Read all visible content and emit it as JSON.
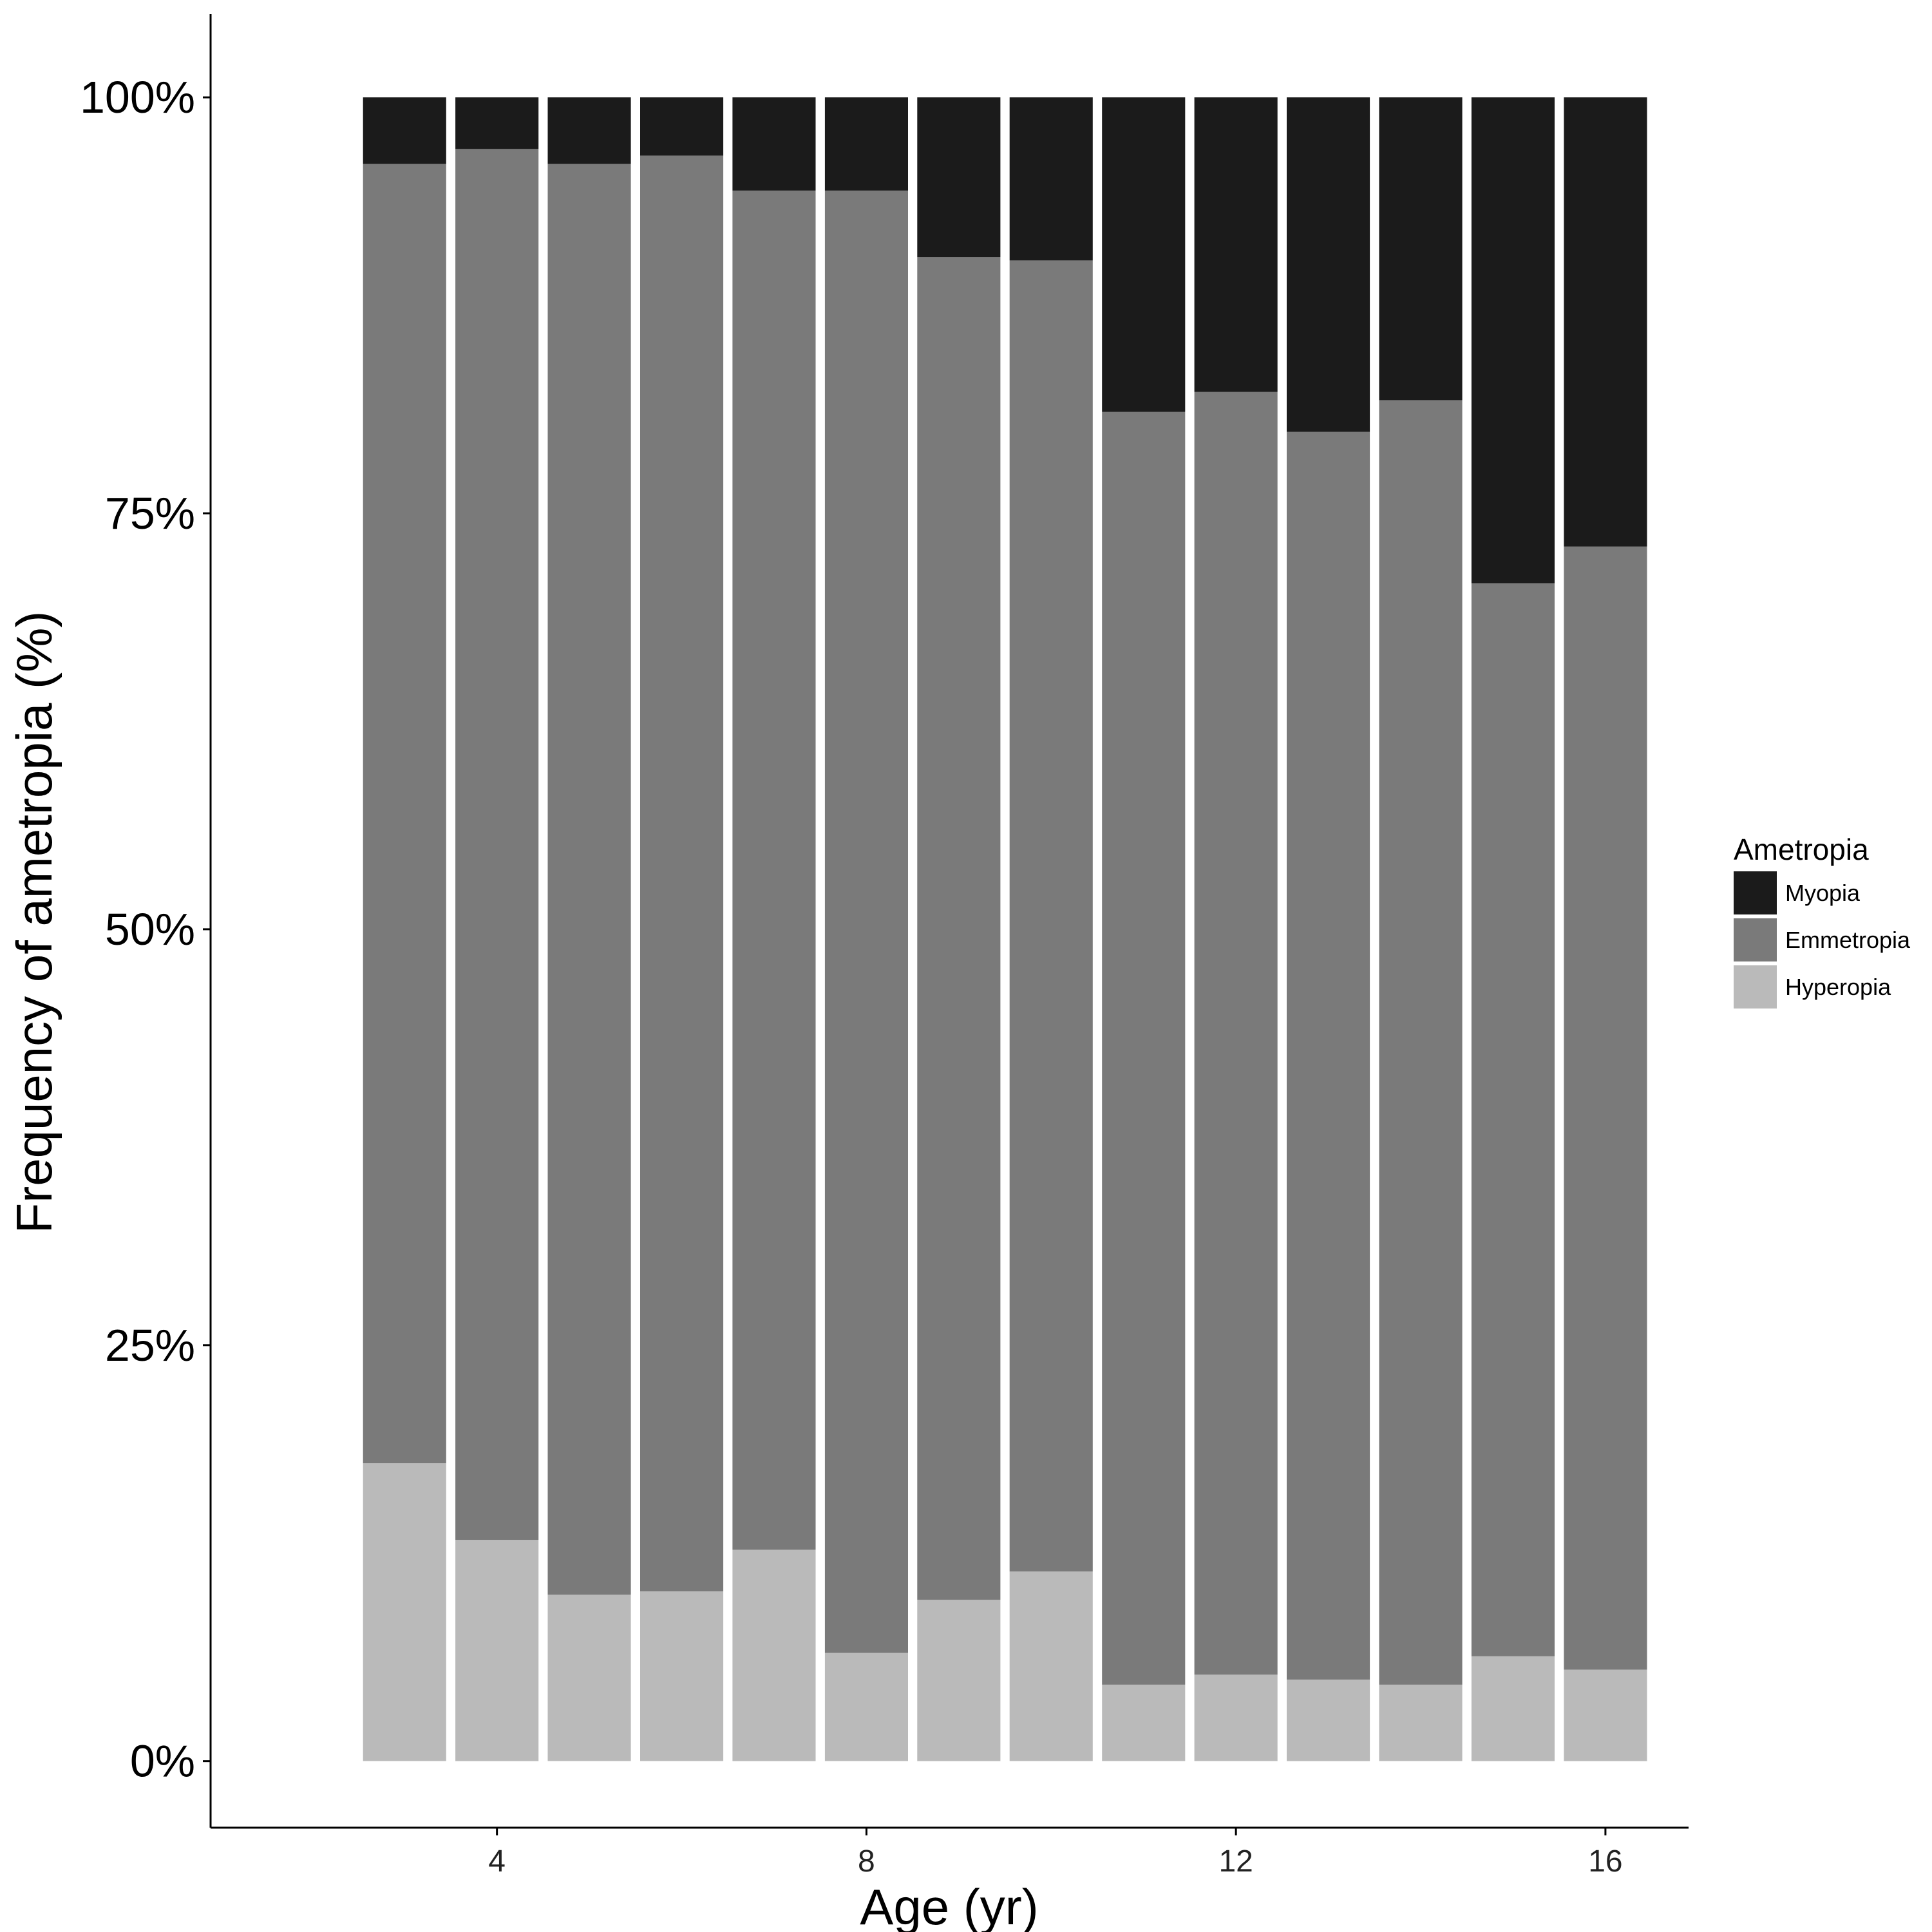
{
  "chart_data": {
    "type": "bar",
    "stacked": true,
    "normalized": true,
    "xlabel": "Age (yr)",
    "ylabel": "Frequency of ametropia (%)",
    "x": [
      3,
      4,
      5,
      6,
      7,
      8,
      9,
      10,
      11,
      12,
      13,
      14,
      15,
      16
    ],
    "x_ticks": [
      4,
      8,
      12,
      16
    ],
    "xlim": [
      0.9,
      16.9
    ],
    "ylim": [
      -4,
      105
    ],
    "y_ticks": [
      0,
      25,
      50,
      75,
      100
    ],
    "y_tick_labels": [
      "0%",
      "25%",
      "50%",
      "75%",
      "100%"
    ],
    "grid": false,
    "legend": {
      "title": "Ametropia",
      "position": "right",
      "entries": [
        "Myopia",
        "Emmetropia",
        "Hyperopia"
      ]
    },
    "series": [
      {
        "name": "Hyperopia",
        "color": "#bababa",
        "values": [
          17.9,
          13.3,
          10.0,
          10.2,
          12.7,
          6.5,
          9.7,
          11.4,
          4.6,
          5.2,
          4.9,
          4.6,
          6.3,
          5.5
        ]
      },
      {
        "name": "Emmetropia",
        "color": "#7a7a7a",
        "values": [
          78.1,
          83.6,
          86.0,
          86.3,
          81.7,
          87.9,
          80.7,
          78.8,
          76.5,
          77.1,
          75.0,
          77.2,
          64.5,
          67.5
        ]
      },
      {
        "name": "Myopia",
        "color": "#1b1b1b",
        "values": [
          4.0,
          3.1,
          4.0,
          3.5,
          5.6,
          5.6,
          9.6,
          9.8,
          18.9,
          17.7,
          20.1,
          18.2,
          29.2,
          27.0
        ]
      }
    ]
  }
}
